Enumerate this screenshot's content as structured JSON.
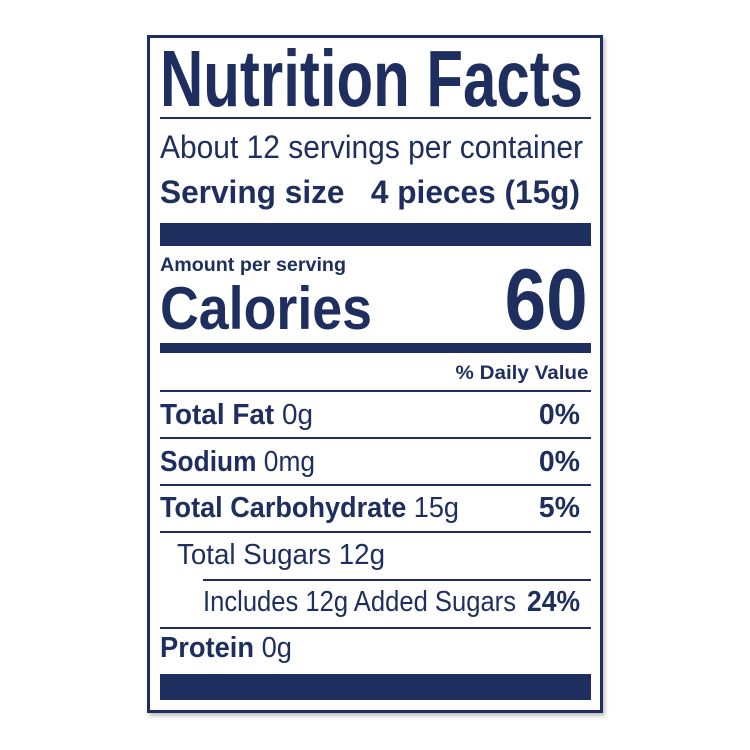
{
  "title": "Nutrition Facts",
  "servings_per_container": "About 12 servings per container",
  "serving_size": {
    "label": "Serving size",
    "value": "4 pieces (15g)"
  },
  "amount_per_serving": "Amount per serving",
  "calories": {
    "label": "Calories",
    "value": "60"
  },
  "daily_value_header": "% Daily Value",
  "nutrients": [
    {
      "name": "Total Fat",
      "amount": "0g",
      "dv": "0%"
    },
    {
      "name": "Sodium",
      "amount": "0mg",
      "dv": "0%"
    },
    {
      "name": "Total Carbohydrate",
      "amount": "15g",
      "dv": "5%"
    },
    {
      "name": "Total Sugars 12g",
      "amount": "",
      "dv": ""
    },
    {
      "name": "Includes 12g Added Sugars",
      "amount": "",
      "dv": "24%"
    },
    {
      "name": "Protein",
      "amount": "0g",
      "dv": ""
    }
  ],
  "colors": {
    "ink": "#1e2f5f",
    "background": "#ffffff"
  }
}
